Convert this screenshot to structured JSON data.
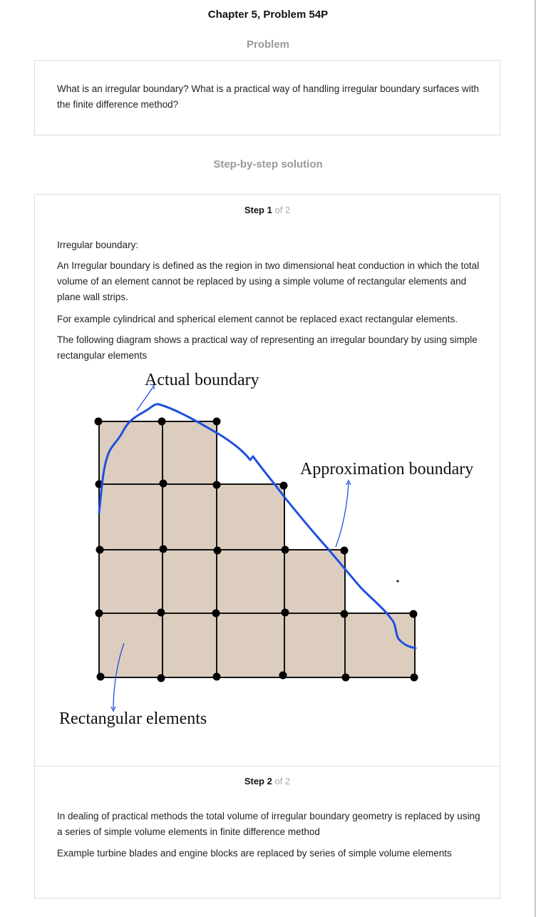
{
  "header": {
    "title": "Chapter 5, Problem 54P"
  },
  "problem": {
    "heading": "Problem",
    "text": "What is an irregular boundary? What is a practical way of handling irregular boundary surfaces with the finite difference method?"
  },
  "solution": {
    "heading": "Step-by-step solution",
    "steps": [
      {
        "label": "Step 1",
        "of": "of 2",
        "paragraphs": [
          "Irregular boundary:",
          "An Irregular boundary is defined as the region in two dimensional heat conduction in which the total volume of an element cannot be replaced by using a simple volume of rectangular elements and plane wall strips.",
          "For example cylindrical and spherical element cannot be replaced exact rectangular elements.",
          "The following diagram shows a practical way of representing an irregular boundary by using simple rectangular elements"
        ],
        "diagram": {
          "labels": {
            "actual": "Actual boundary",
            "approximation": "Approximation boundary",
            "rectangular": "Rectangular elements"
          },
          "colors": {
            "fill": "#dccdbf",
            "curve": "#1f4fe0",
            "line": "#111111"
          }
        }
      },
      {
        "label": "Step 2",
        "of": "of 2",
        "paragraphs": [
          "In dealing of practical methods the total volume of irregular boundary geometry is replaced by using a series of simple volume elements in finite difference method",
          "Example turbine blades and engine blocks are replaced by series of simple volume elements"
        ]
      }
    ]
  }
}
